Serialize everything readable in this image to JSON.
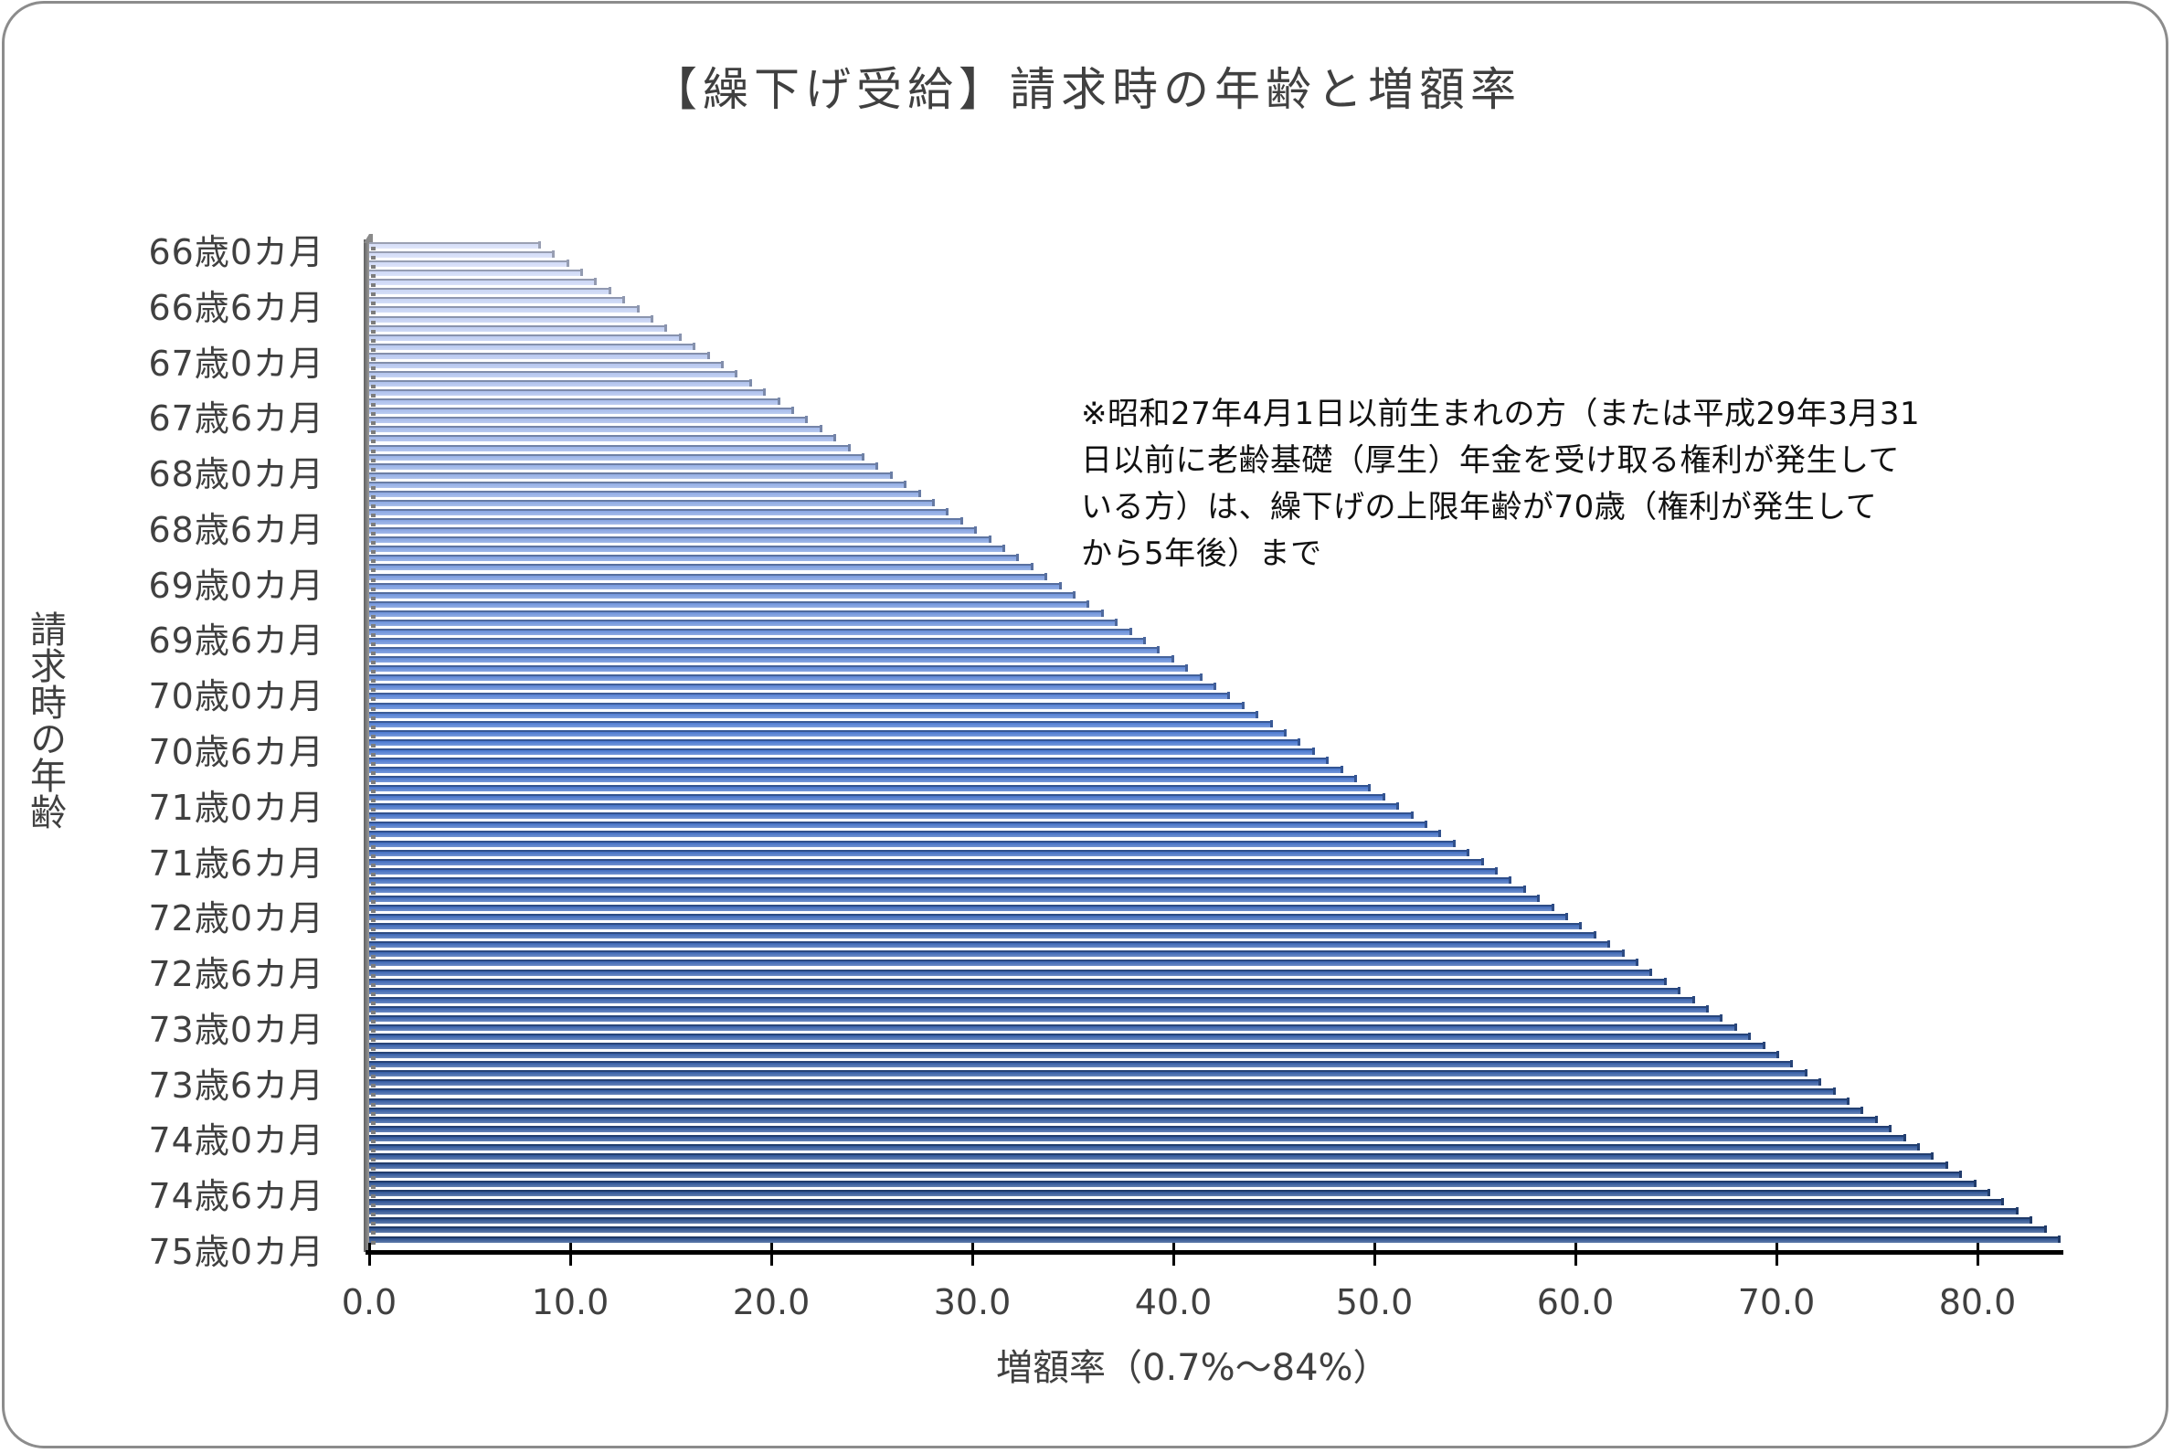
{
  "chart_data": {
    "type": "bar",
    "orientation": "horizontal",
    "style": "3d-clustered-bar",
    "title": "【繰下げ受給】請求時の年齢と増額率",
    "xlabel": "増額率（0.7%～84%）",
    "ylabel": "請求時の年齢",
    "xlim": [
      0,
      84
    ],
    "x_ticks": [
      "0.0",
      "10.0",
      "20.0",
      "30.0",
      "40.0",
      "50.0",
      "60.0",
      "70.0",
      "80.0"
    ],
    "y_tick_labels": [
      "66歳0カ月",
      "66歳6カ月",
      "67歳0カ月",
      "67歳6カ月",
      "68歳0カ月",
      "68歳6カ月",
      "69歳0カ月",
      "69歳6カ月",
      "70歳0カ月",
      "70歳6カ月",
      "71歳0カ月",
      "71歳6カ月",
      "72歳0カ月",
      "72歳6カ月",
      "73歳0カ月",
      "73歳6カ月",
      "74歳0カ月",
      "74歳6カ月",
      "75歳0カ月"
    ],
    "grid": false,
    "legend": null,
    "categories_rule": "monthly from 66歳0カ月 to 75歳0カ月 (109 bars)",
    "start_age_years": 66,
    "start_age_months": 0,
    "values": [
      8.4,
      9.1,
      9.8,
      10.5,
      11.2,
      11.9,
      12.6,
      13.3,
      14.0,
      14.7,
      15.4,
      16.1,
      16.8,
      17.5,
      18.2,
      18.9,
      19.6,
      20.3,
      21.0,
      21.7,
      22.4,
      23.1,
      23.8,
      24.5,
      25.2,
      25.9,
      26.6,
      27.3,
      28.0,
      28.7,
      29.4,
      30.1,
      30.8,
      31.5,
      32.2,
      32.9,
      33.6,
      34.3,
      35.0,
      35.7,
      36.4,
      37.1,
      37.8,
      38.5,
      39.2,
      39.9,
      40.6,
      41.3,
      42.0,
      42.7,
      43.4,
      44.1,
      44.8,
      45.5,
      46.2,
      46.9,
      47.6,
      48.3,
      49.0,
      49.7,
      50.4,
      51.1,
      51.8,
      52.5,
      53.2,
      53.9,
      54.6,
      55.3,
      56.0,
      56.7,
      57.4,
      58.1,
      58.8,
      59.5,
      60.2,
      60.9,
      61.6,
      62.3,
      63.0,
      63.7,
      64.4,
      65.1,
      65.8,
      66.5,
      67.2,
      67.9,
      68.6,
      69.3,
      70.0,
      70.7,
      71.4,
      72.1,
      72.8,
      73.5,
      74.2,
      74.9,
      75.6,
      76.3,
      77.0,
      77.7,
      78.4,
      79.1,
      79.8,
      80.5,
      81.2,
      81.9,
      82.6,
      83.3,
      84.0
    ],
    "annotation": "※昭和27年4月1日以前生まれの方（または平成29年3月31日以前に老齢基礎（厚生）年金を受け取る権利が発生している方）は、繰下げの上限年齢が70歳（権利が発生してから5年後）まで",
    "colors": {
      "bar_top": "#d6def8",
      "bar_mid": "#4a78d0",
      "bar_bottom": "#2b4f8e",
      "axis": "#000000",
      "text": "#404040",
      "frame": "#8c8c8c"
    }
  },
  "header": {
    "title": "【繰下げ受給】請求時の年齢と増額率"
  },
  "axes": {
    "y_title": "請求時の年齢",
    "x_title": "増額率（0.7%～84%）"
  },
  "note": {
    "lines": [
      "※昭和27年4月1日以前生まれの方（または平成29年3月31",
      "日以前に老齢基礎（厚生）年金を受け取る権利が発生して",
      "いる方）は、繰下げの上限年齢が70歳（権利が発生して",
      "から5年後）まで"
    ]
  }
}
